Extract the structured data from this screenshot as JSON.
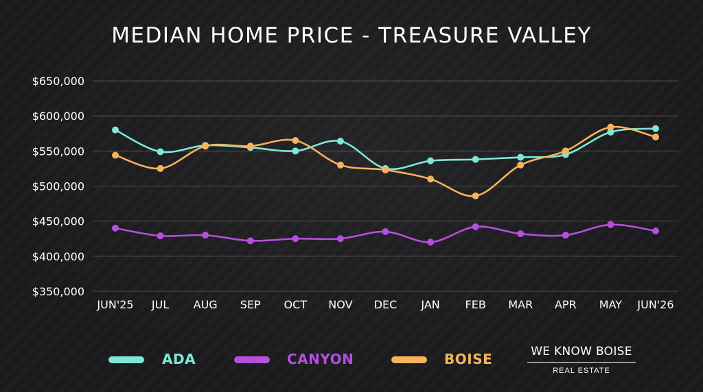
{
  "chart_data": {
    "type": "line",
    "title": "MEDIAN HOME PRICE - TREASURE VALLEY",
    "categories": [
      "JUN'25",
      "JUL",
      "AUG",
      "SEP",
      "OCT",
      "NOV",
      "DEC",
      "JAN",
      "FEB",
      "MAR",
      "APR",
      "MAY",
      "JUN'26"
    ],
    "yticks": [
      "$350,000",
      "$400,000",
      "$450,000",
      "$500,000",
      "$550,000",
      "$600,000",
      "$650,000"
    ],
    "ylim": [
      350000,
      650000
    ],
    "grid": true,
    "legend_position": "bottom",
    "series": [
      {
        "name": "ADA",
        "color": "#7ee8d8",
        "values": [
          580000,
          549000,
          558000,
          555000,
          550000,
          564000,
          525000,
          536000,
          538000,
          541000,
          545000,
          577000,
          582000
        ]
      },
      {
        "name": "CANYON",
        "color": "#b44fe0",
        "values": [
          440000,
          429000,
          430000,
          422000,
          425000,
          425000,
          435000,
          420000,
          442000,
          432000,
          430000,
          445000,
          436000
        ]
      },
      {
        "name": "BOISE",
        "color": "#f5b35e",
        "values": [
          544000,
          525000,
          557000,
          557000,
          565000,
          530000,
          523000,
          510000,
          486000,
          530000,
          550000,
          584000,
          570000
        ]
      }
    ]
  },
  "brand": {
    "name": "WE KNOW BOISE",
    "sub": "REAL ESTATE"
  }
}
